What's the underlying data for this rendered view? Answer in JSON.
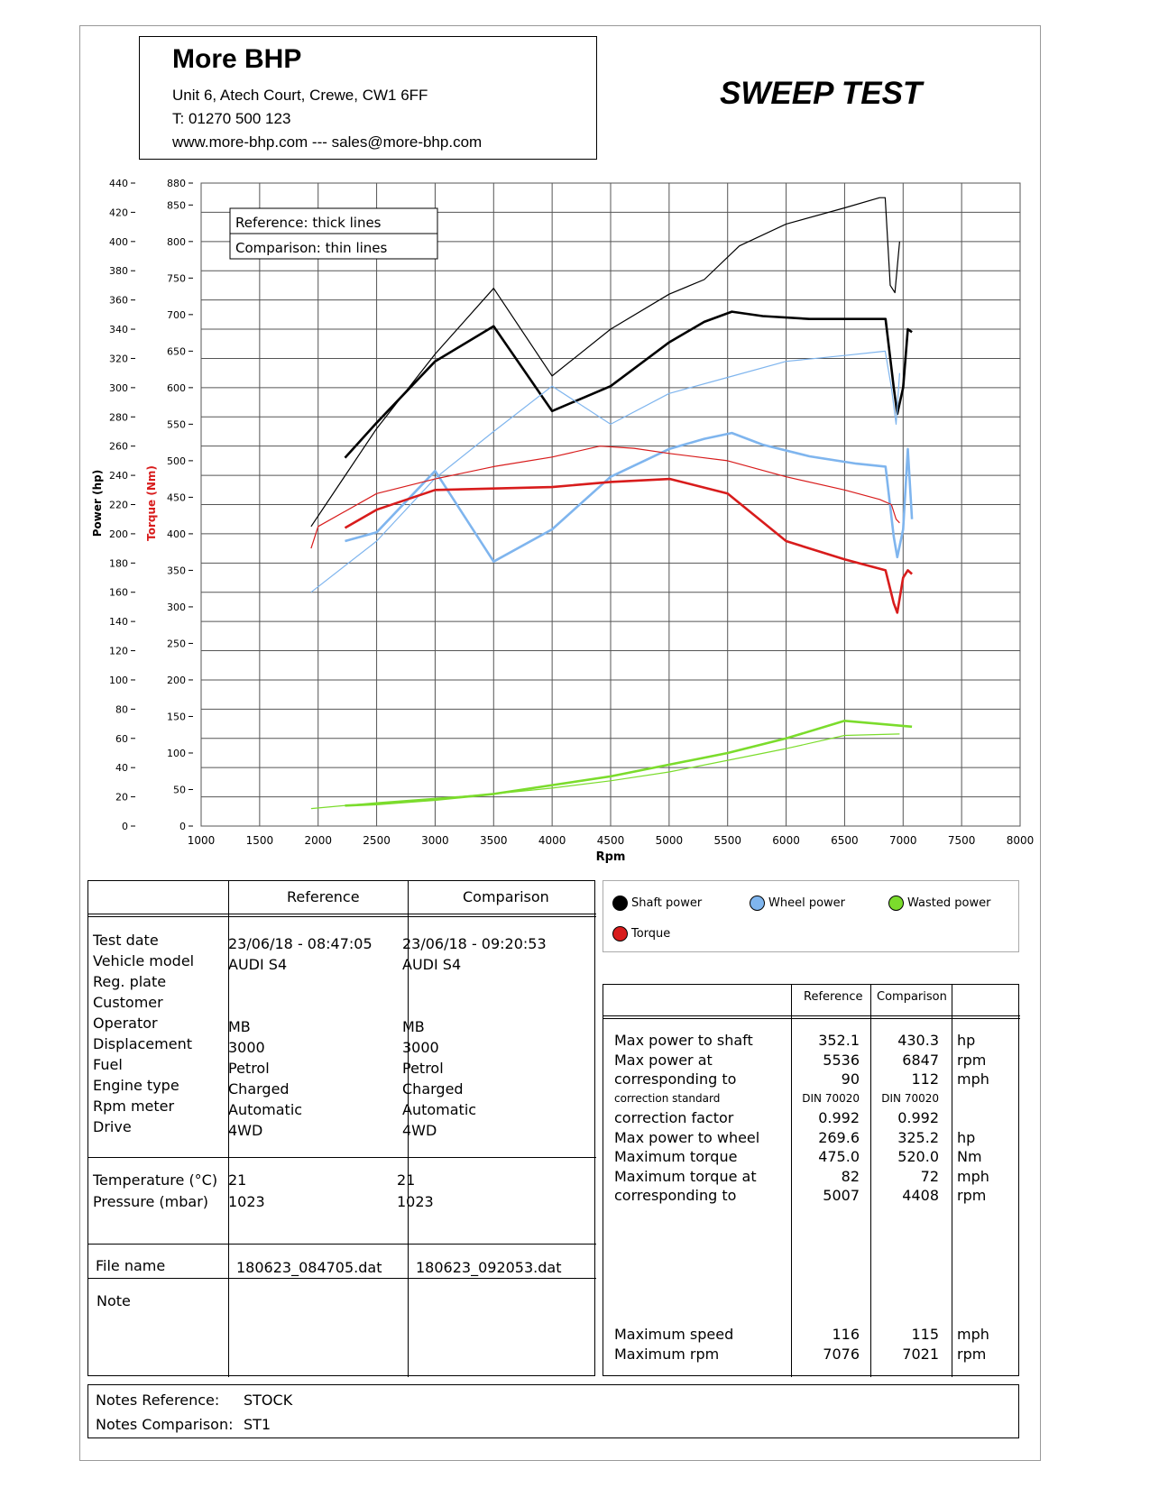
{
  "header": {
    "company": "More BHP",
    "address": "Unit 6, Atech Court, Crewe, CW1 6FF",
    "phone": "T: 01270 500 123",
    "web": "www.more-bhp.com --- sales@more-bhp.com",
    "title": "SWEEP TEST"
  },
  "chart_data": {
    "type": "line",
    "xlabel": "Rpm",
    "ylabel_power": "Power (hp)",
    "ylabel_torque": "Torque (Nm)",
    "xlim": [
      1000,
      8000
    ],
    "ylim_power": [
      0,
      440
    ],
    "ylim_torque": [
      0,
      880
    ],
    "x_ticks": [
      "1000",
      "1500",
      "2000",
      "2500",
      "3000",
      "3500",
      "4000",
      "4500",
      "5000",
      "5500",
      "6000",
      "6500",
      "7000",
      "7500",
      "8000"
    ],
    "power_ticks": [
      "440",
      "420",
      "400",
      "380",
      "360",
      "340",
      "320",
      "300",
      "280",
      "260",
      "240",
      "220",
      "200",
      "180",
      "160",
      "140",
      "120",
      "100",
      "80",
      "60",
      "40",
      "20",
      "0"
    ],
    "torque_ticks": [
      "880",
      "850",
      "800",
      "750",
      "700",
      "650",
      "600",
      "550",
      "500",
      "450",
      "400",
      "350",
      "300",
      "250",
      "200",
      "150",
      "100",
      "50",
      "0"
    ],
    "grid": true,
    "inline_legend": [
      "Reference: thick lines",
      "Comparison: thin lines"
    ],
    "colors": {
      "shaft": "#000000",
      "wheel": "#7fb5ee",
      "wasted": "#7bdc2c",
      "torque": "#d81c1c"
    },
    "series": [
      {
        "name": "Shaft power",
        "run": "Reference",
        "axis": "power",
        "x": [
          2230,
          2500,
          3000,
          3500,
          4000,
          4500,
          5000,
          5300,
          5536,
          5800,
          6200,
          6600,
          6850,
          6920,
          6950,
          7000,
          7040,
          7076
        ],
        "y": [
          252,
          276,
          318,
          342,
          284,
          301,
          331,
          345,
          352,
          349,
          347,
          347,
          347,
          300,
          282,
          300,
          340,
          338
        ]
      },
      {
        "name": "Shaft power",
        "run": "Comparison",
        "axis": "power",
        "x": [
          1940,
          2500,
          3000,
          3500,
          4000,
          4500,
          5000,
          5300,
          5600,
          6000,
          6500,
          6800,
          6847,
          6890,
          6930,
          6970
        ],
        "y": [
          205,
          272,
          323,
          368,
          308,
          340,
          364,
          374,
          397,
          412,
          423,
          430,
          430,
          370,
          365,
          400
        ]
      },
      {
        "name": "Wheel power",
        "run": "Reference",
        "axis": "power",
        "x": [
          2230,
          2500,
          3000,
          3500,
          4000,
          4500,
          5000,
          5300,
          5536,
          5800,
          6200,
          6600,
          6850,
          6920,
          6950,
          7000,
          7040,
          7076
        ],
        "y": [
          195,
          201,
          243,
          181,
          203,
          239,
          258,
          265,
          269,
          261,
          253,
          248,
          246,
          198,
          184,
          203,
          258,
          210
        ]
      },
      {
        "name": "Wheel power",
        "run": "Comparison",
        "axis": "power",
        "x": [
          1940,
          2500,
          3000,
          3500,
          4000,
          4500,
          5000,
          5500,
          6000,
          6500,
          6847,
          6900,
          6940,
          6970
        ],
        "y": [
          160,
          195,
          238,
          270,
          301,
          275,
          296,
          307,
          318,
          322,
          325,
          300,
          275,
          310
        ]
      },
      {
        "name": "Torque",
        "run": "Reference",
        "axis": "torque",
        "x": [
          2230,
          2500,
          3000,
          3500,
          4000,
          4500,
          5007,
          5500,
          6000,
          6500,
          6850,
          6920,
          6950,
          7000,
          7040,
          7076
        ],
        "y": [
          408,
          433,
          460,
          462,
          464,
          471,
          475,
          455,
          390,
          365,
          350,
          305,
          292,
          340,
          350,
          345
        ]
      },
      {
        "name": "Torque",
        "run": "Comparison",
        "axis": "torque",
        "x": [
          1940,
          2000,
          2500,
          3000,
          3500,
          4000,
          4408,
          4700,
          5000,
          5500,
          6000,
          6500,
          6800,
          6900,
          6940,
          6970
        ],
        "y": [
          380,
          410,
          455,
          475,
          492,
          505,
          520,
          517,
          510,
          500,
          478,
          460,
          447,
          440,
          420,
          415
        ]
      },
      {
        "name": "Wasted power",
        "run": "Reference",
        "axis": "power",
        "x": [
          2230,
          2500,
          3000,
          3500,
          4000,
          4500,
          5000,
          5500,
          6000,
          6500,
          7076
        ],
        "y": [
          14,
          15,
          18,
          22,
          28,
          34,
          42,
          50,
          60,
          72,
          68
        ]
      },
      {
        "name": "Wasted power",
        "run": "Comparison",
        "axis": "power",
        "x": [
          1940,
          2500,
          3000,
          3500,
          4000,
          4500,
          5000,
          5500,
          6000,
          6500,
          6970
        ],
        "y": [
          12,
          16,
          19,
          22,
          26,
          31,
          37,
          45,
          53,
          62,
          63
        ]
      }
    ]
  },
  "legend": [
    {
      "label": "Shaft power",
      "color": "#000000"
    },
    {
      "label": "Wheel power",
      "color": "#7fb5ee"
    },
    {
      "label": "Wasted power",
      "color": "#7bdc2c"
    },
    {
      "label": "Torque",
      "color": "#d81c1c"
    }
  ],
  "info_table": {
    "col_reference": "Reference",
    "col_comparison": "Comparison",
    "rows1": [
      {
        "label": "Test date",
        "ref": "23/06/18 - 08:47:05",
        "cmp": "23/06/18 - 09:20:53"
      },
      {
        "label": "Vehicle model",
        "ref": "AUDI S4",
        "cmp": "AUDI S4"
      },
      {
        "label": "Reg. plate",
        "ref": "",
        "cmp": ""
      },
      {
        "label": "Customer",
        "ref": "",
        "cmp": ""
      },
      {
        "label": "Operator",
        "ref": "MB",
        "cmp": "MB"
      },
      {
        "label": "Displacement",
        "ref": "3000",
        "cmp": "3000"
      },
      {
        "label": "Fuel",
        "ref": "Petrol",
        "cmp": "Petrol"
      },
      {
        "label": "Engine type",
        "ref": "Charged",
        "cmp": "Charged"
      },
      {
        "label": "Rpm meter",
        "ref": "Automatic",
        "cmp": "Automatic"
      },
      {
        "label": "Drive",
        "ref": "4WD",
        "cmp": "4WD"
      }
    ],
    "rows2": [
      {
        "label": "Temperature (°C)",
        "ref": "21",
        "cmp": "21"
      },
      {
        "label": "Pressure (mbar)",
        "ref": "1023",
        "cmp": "1023"
      }
    ],
    "file": {
      "label": "File name",
      "ref": "180623_084705.dat",
      "cmp": "180623_092053.dat"
    },
    "note": {
      "label": "Note"
    }
  },
  "results_table": {
    "col_reference": "Reference",
    "col_comparison": "Comparison",
    "rows": [
      {
        "label": "Max power to shaft",
        "ref": "352.1",
        "cmp": "430.3",
        "unit": "hp",
        "small": false
      },
      {
        "label": "Max power at",
        "ref": "5536",
        "cmp": "6847",
        "unit": "rpm",
        "small": false
      },
      {
        "label": "corresponding to",
        "ref": "90",
        "cmp": "112",
        "unit": "mph",
        "small": false
      },
      {
        "label": "correction standard",
        "ref": "DIN 70020",
        "cmp": "DIN 70020",
        "unit": "",
        "small": true
      },
      {
        "label": "correction factor",
        "ref": "0.992",
        "cmp": "0.992",
        "unit": "",
        "small": false
      },
      {
        "label": "Max power to wheel",
        "ref": "269.6",
        "cmp": "325.2",
        "unit": "hp",
        "small": false
      },
      {
        "label": "Maximum torque",
        "ref": "475.0",
        "cmp": "520.0",
        "unit": "Nm",
        "small": false
      },
      {
        "label": "Maximum torque at",
        "ref": "82",
        "cmp": "72",
        "unit": "mph",
        "small": false
      },
      {
        "label": "corresponding to",
        "ref": "5007",
        "cmp": "4408",
        "unit": "rpm",
        "small": false
      }
    ],
    "bottom_rows": [
      {
        "label": "Maximum speed",
        "ref": "116",
        "cmp": "115",
        "unit": "mph"
      },
      {
        "label": "Maximum rpm",
        "ref": "7076",
        "cmp": "7021",
        "unit": "rpm"
      }
    ]
  },
  "notes": {
    "ref_label": "Notes Reference:",
    "ref_value": "STOCK",
    "cmp_label": "Notes Comparison:",
    "cmp_value": "ST1"
  }
}
